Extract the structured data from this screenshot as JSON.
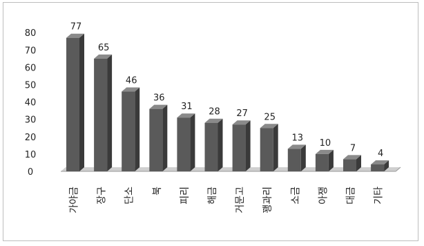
{
  "colors": {
    "bar_front": "#5a5a5a",
    "bar_side": "#3a3a3a",
    "bar_top": "#8a8a8a",
    "floor": "#cfcfcf",
    "axis": "#9a9a9a",
    "border": "#bdbdbd"
  },
  "chart_data": {
    "type": "bar",
    "title": "",
    "xlabel": "",
    "ylabel": "",
    "ylim": [
      0,
      80
    ],
    "yticks": [
      0,
      10,
      20,
      30,
      40,
      50,
      60,
      70,
      80
    ],
    "grid": false,
    "legend": "none",
    "style": "3d-column",
    "categories": [
      "가야금",
      "장구",
      "단소",
      "북",
      "피리",
      "해금",
      "거문고",
      "꽹과리",
      "소금",
      "아쟁",
      "대금",
      "기타"
    ],
    "values": [
      77,
      65,
      46,
      36,
      31,
      28,
      27,
      25,
      13,
      10,
      7,
      4
    ]
  }
}
